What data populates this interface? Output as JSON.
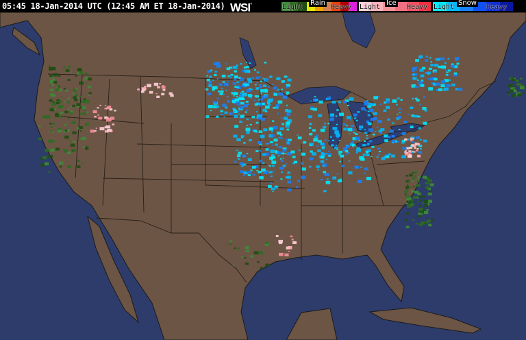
{
  "header": {
    "timestamp": "05:45 18-Jan-2014 UTC (12:45 AM ET 18-Jan-2014)",
    "logo": "WSI",
    "logo_mark": "°"
  },
  "legend": {
    "rain": {
      "title": "Rain",
      "light": "Light",
      "heavy": "Heavy",
      "colors": [
        "#3f8a3a",
        "#2f6a22",
        "#1f4c12",
        "#e6e600",
        "#f0a000",
        "#d08050",
        "#e04010",
        "#b00000",
        "#e020e0"
      ]
    },
    "ice": {
      "title": "Ice",
      "light": "Light",
      "heavy": "Heavy",
      "colors": [
        "#ffd0d8",
        "#ffb0b8",
        "#f89098",
        "#f07080",
        "#f05060",
        "#f03040"
      ]
    },
    "snow": {
      "title": "Snow",
      "light": "Light",
      "heavy": "Heavy",
      "colors": [
        "#00e8f8",
        "#00b8f8",
        "#1880f8",
        "#1050f0",
        "#1030d0",
        "#0a18a0"
      ]
    }
  },
  "map": {
    "ocean_color": "#2d3c6a",
    "land_color": "#6c5545",
    "lake_color": "#2e3e70",
    "border_color": "#2a2018"
  }
}
